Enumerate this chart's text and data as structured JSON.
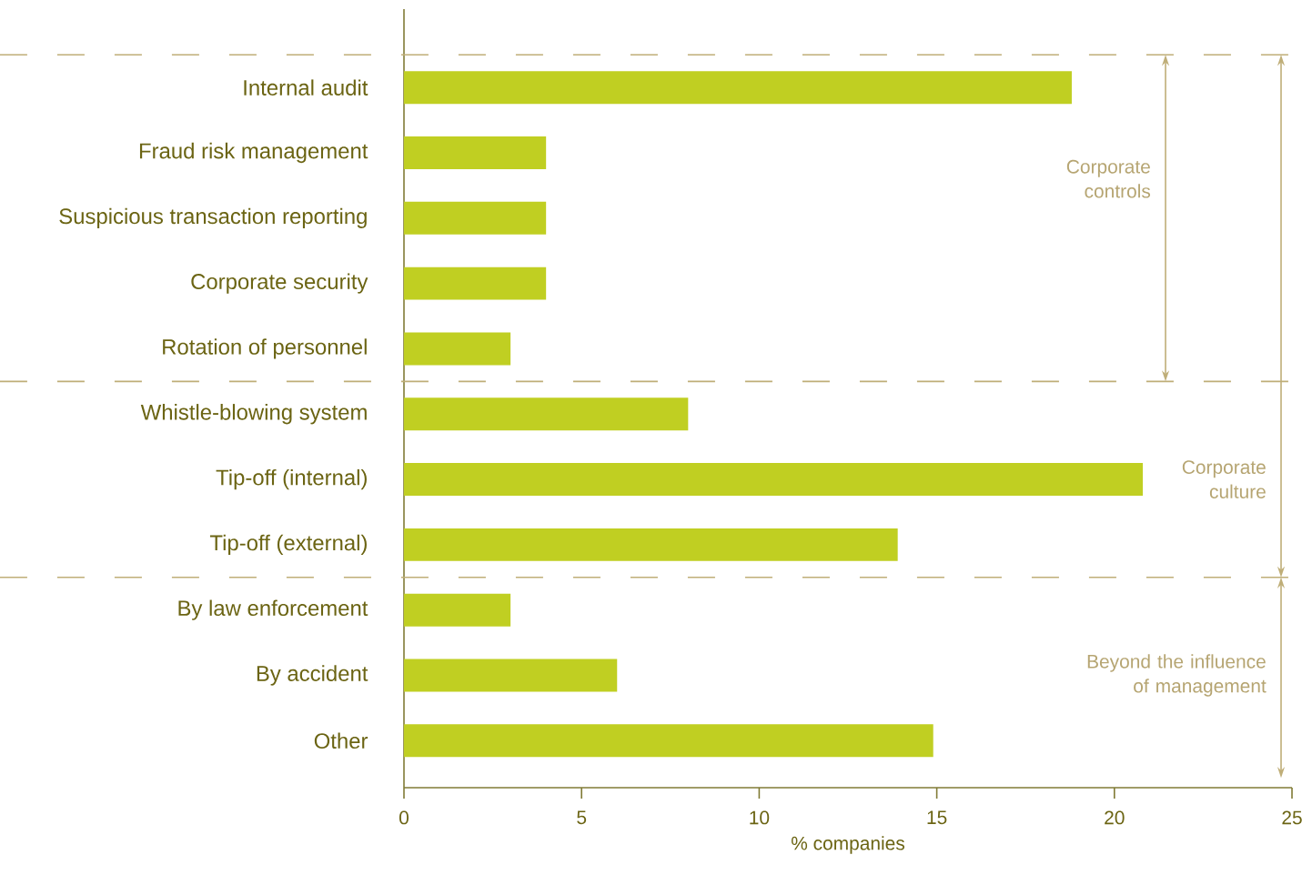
{
  "chart_data": {
    "type": "bar",
    "orientation": "horizontal",
    "categories": [
      "Internal audit",
      "Fraud risk management",
      "Suspicious transaction reporting",
      "Corporate security",
      "Rotation of personnel",
      "Whistle-blowing system",
      "Tip-off (internal)",
      "Tip-off (external)",
      "By law enforcement",
      "By accident",
      "Other"
    ],
    "values": [
      18.8,
      4,
      4,
      4,
      3,
      8,
      20.8,
      13.9,
      3,
      6,
      14.9
    ],
    "color": "#c0cf22",
    "xlabel": "% companies",
    "xlim": [
      0,
      25
    ],
    "xticks": [
      0,
      5,
      10,
      15,
      20,
      25
    ],
    "annotations": [
      "Corporate controls",
      "Corporate culture",
      "Beyond the influence of management"
    ]
  }
}
